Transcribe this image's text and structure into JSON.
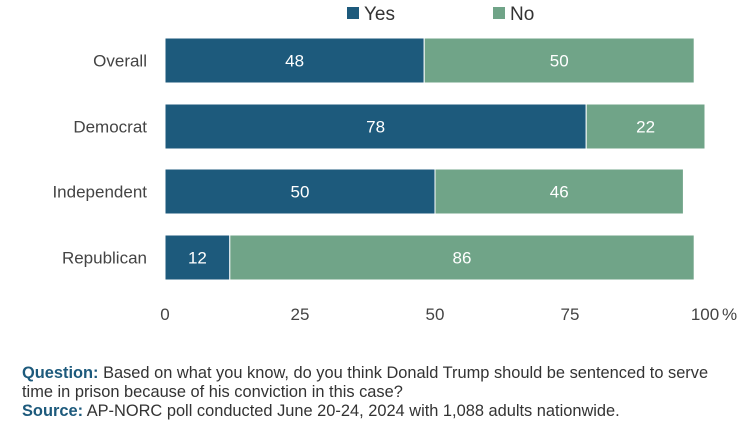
{
  "chart_data": {
    "type": "bar",
    "orientation": "horizontal",
    "stacked": true,
    "title": "",
    "xlabel": "",
    "ylabel": "",
    "categories": [
      "Overall",
      "Democrat",
      "Independent",
      "Republican"
    ],
    "series": [
      {
        "name": "Yes",
        "color": "#1d5a7c",
        "values": [
          48,
          78,
          50,
          12
        ]
      },
      {
        "name": "No",
        "color": "#70a488",
        "values": [
          50,
          22,
          46,
          86
        ]
      }
    ],
    "xlim": [
      0,
      100
    ],
    "xticks": [
      "0",
      "25",
      "50",
      "75",
      "100"
    ],
    "x_unit": "%",
    "legend_position": "top-center",
    "grid": false
  },
  "notes": {
    "question_label": "Question:",
    "question_text": "Based on what you know, do you think Donald Trump should be sentenced to serve time in prison because of his conviction in this case?",
    "source_label": "Source:",
    "source_text": "AP-NORC poll conducted June 20-24, 2024 with 1,088 adults nationwide."
  }
}
